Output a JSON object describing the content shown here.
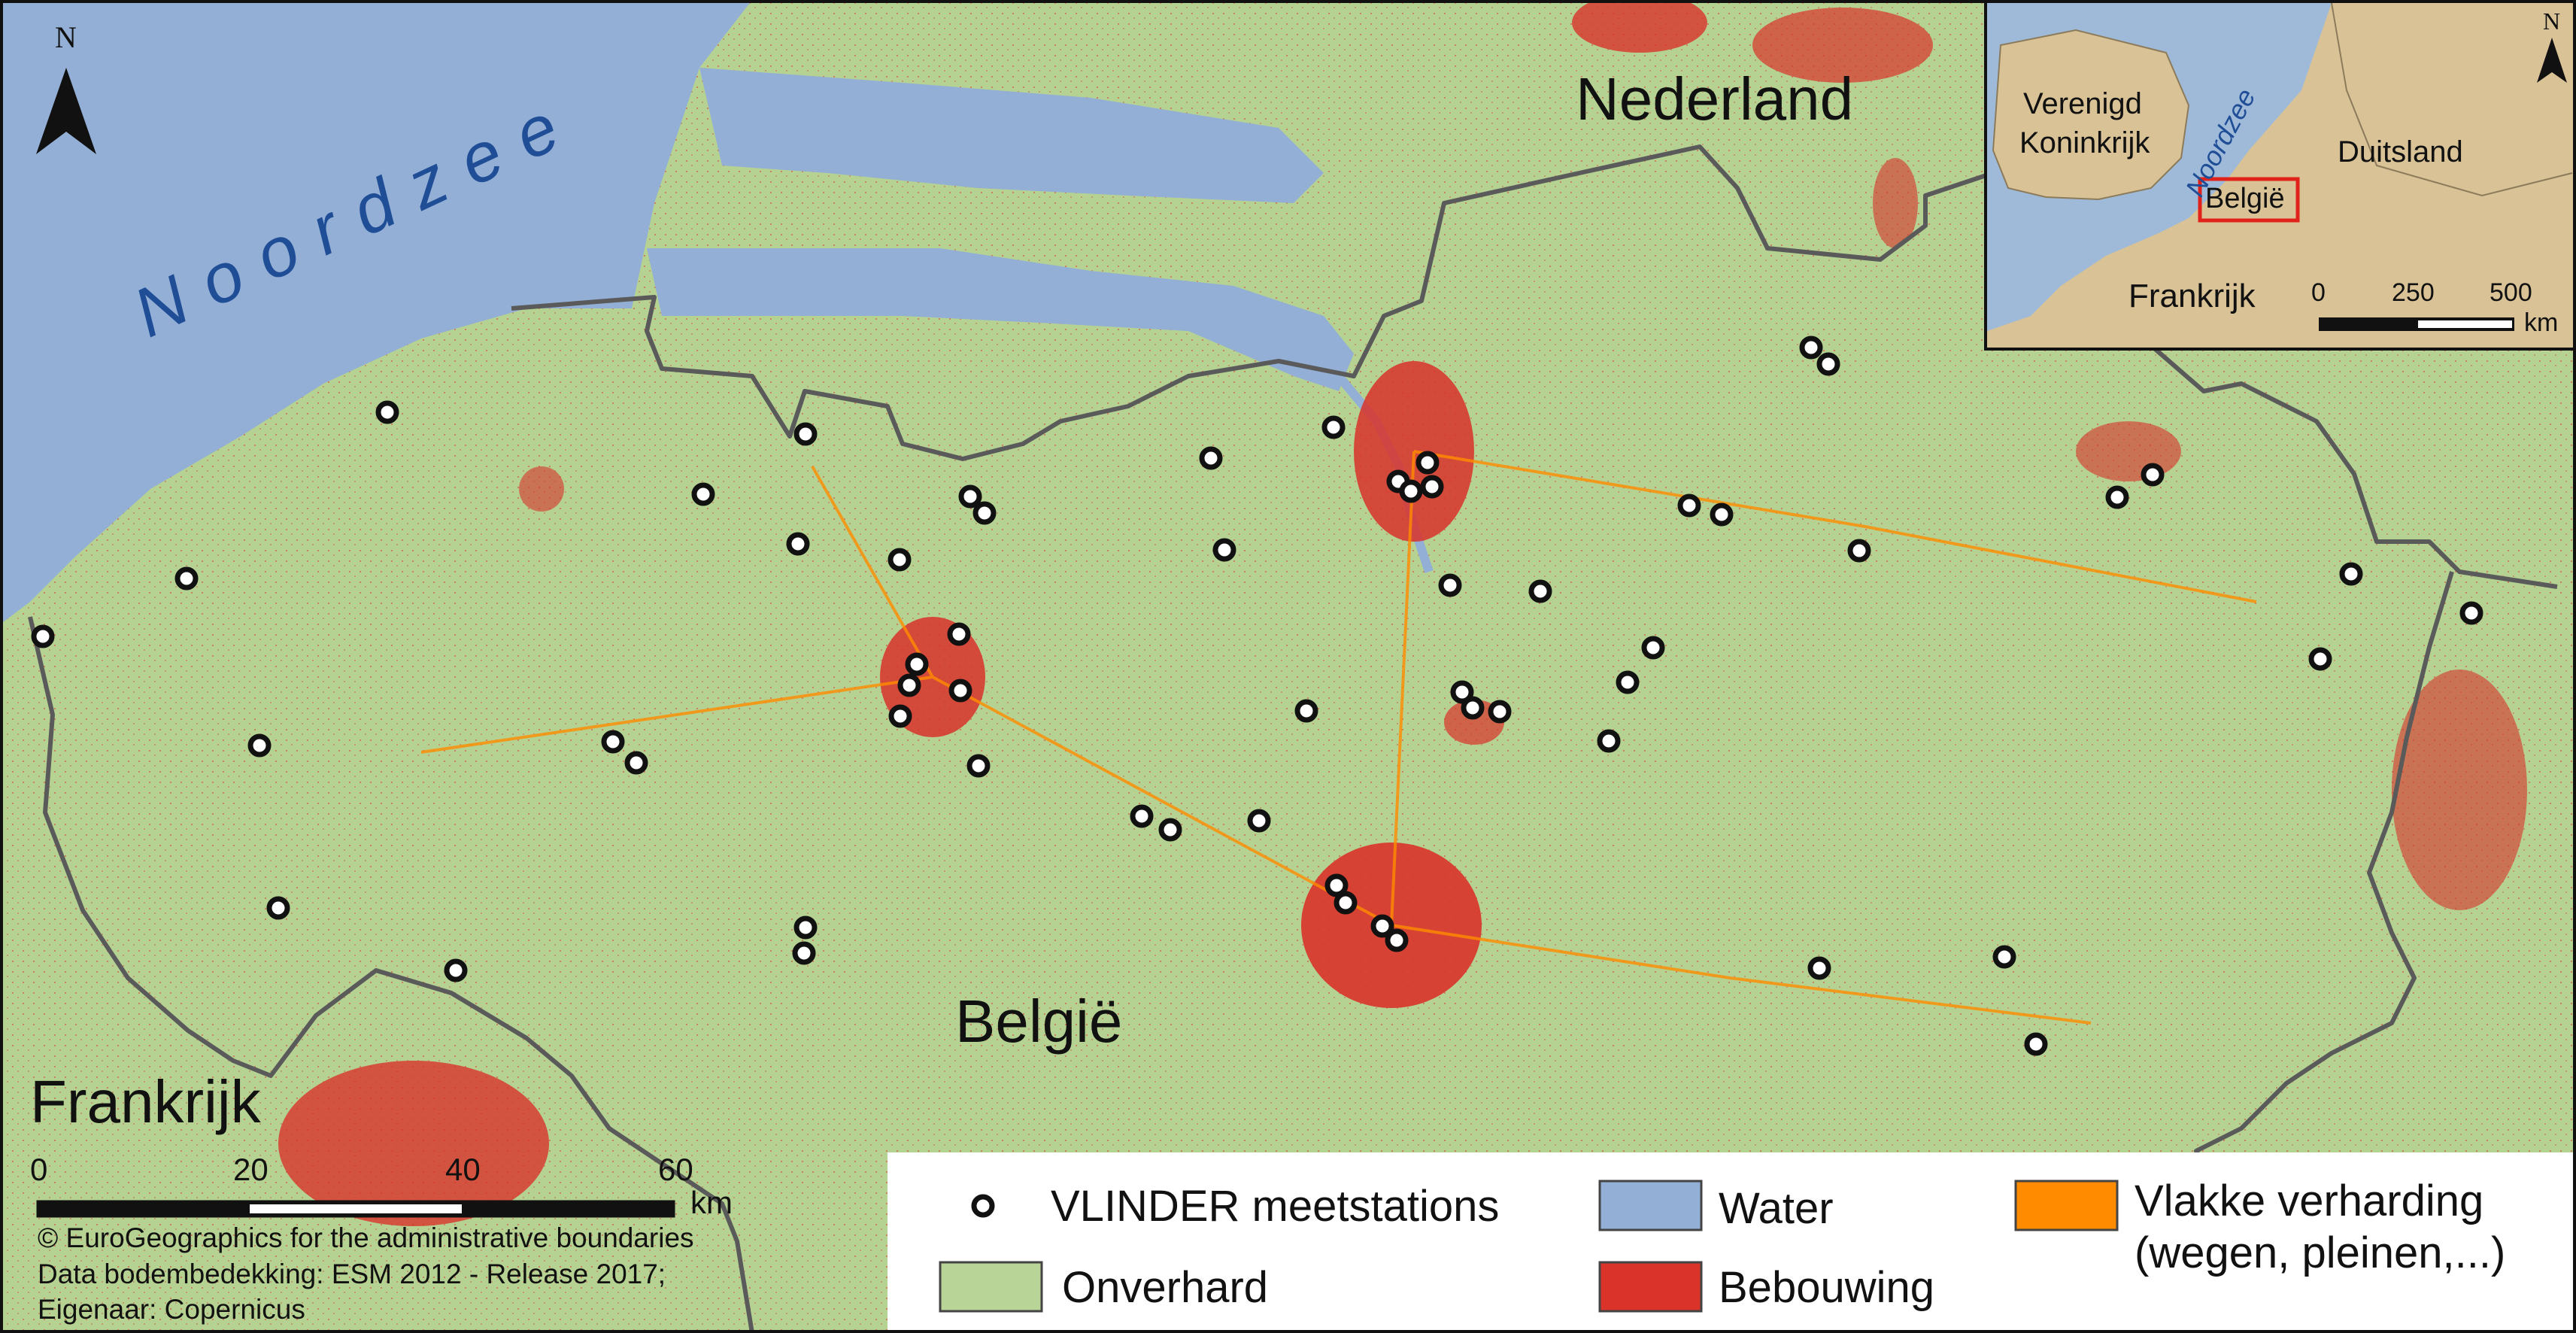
{
  "map": {
    "labels": {
      "sea": "Noordzee",
      "netherlands": "Nederland",
      "belgium": "België",
      "france": "Frankrijk"
    },
    "north_arrow": "N",
    "scale": {
      "ticks": [
        "0",
        "20",
        "40",
        "60"
      ],
      "unit": "km"
    },
    "credits": [
      "© EuroGeographics for the administrative boundaries",
      "Data bodembedekking: ESM 2012 - Release 2017;",
      "Eigenaar: Copernicus"
    ]
  },
  "inset": {
    "labels": {
      "uk_line1": "Verenigd",
      "uk_line2": "Koninkrijk",
      "sea": "Noordzee",
      "belgium": "België",
      "germany": "Duitsland",
      "france": "Frankrijk"
    },
    "north_arrow": "N",
    "scale": {
      "ticks": [
        "0",
        "250",
        "500"
      ],
      "unit": "km"
    }
  },
  "legend": {
    "stations": "VLINDER meetstations",
    "water": "Water",
    "paved_line1": "Vlakke verharding",
    "paved_line2": "(wegen, pleinen,...)",
    "unpaved": "Onverhard",
    "built": "Bebouwing"
  },
  "colors": {
    "unpaved": "#b8d496",
    "water": "#93afd6",
    "built": "#d9332a",
    "paved": "#ff8c00",
    "border": "#5a5a5a",
    "inset_land": "#d8c296",
    "inset_sea": "#9fbad9",
    "sea_label": "#1f4e96"
  },
  "station_count": 62
}
